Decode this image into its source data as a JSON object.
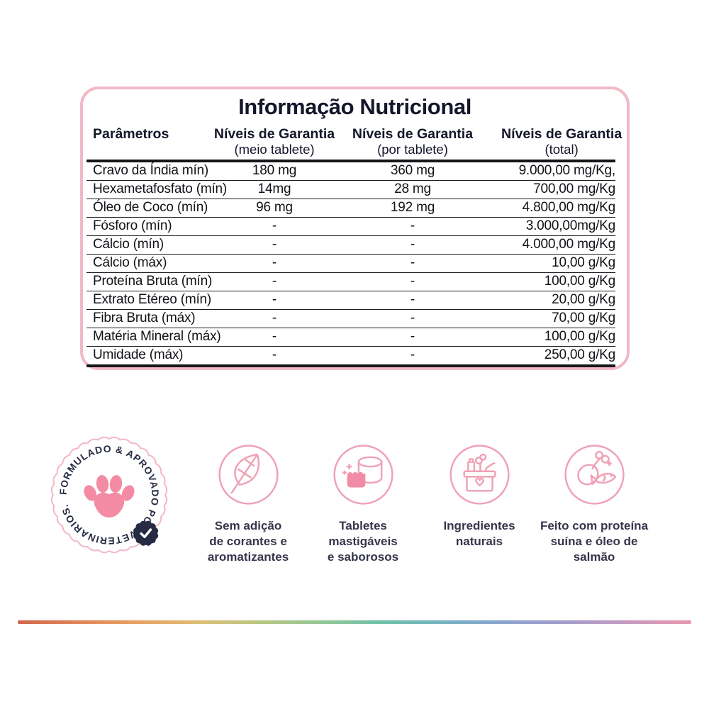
{
  "panel": {
    "title": "Informação Nutricional",
    "table": {
      "columns": [
        {
          "label": "Parâmetros",
          "sublabel": ""
        },
        {
          "label": "Níveis de Garantia",
          "sublabel": "(meio tablete)"
        },
        {
          "label": "Níveis de Garantia",
          "sublabel": "(por tablete)"
        },
        {
          "label": "Níveis de Garantia",
          "sublabel": "(total)"
        }
      ],
      "rows": [
        [
          "Cravo da Índia mín)",
          "180 mg",
          "360 mg",
          "9.000,00 mg/Kg,"
        ],
        [
          "Hexametafosfato (mín)",
          "14mg",
          "28 mg",
          "700,00 mg/Kg"
        ],
        [
          "Óleo de Coco (mín)",
          "96 mg",
          "192 mg",
          "4.800,00 mg/Kg"
        ],
        [
          "Fósforo (mín)",
          "-",
          "-",
          "3.000,00mg/Kg"
        ],
        [
          "Cálcio (mín)",
          "-",
          "-",
          "4.000,00 mg/Kg"
        ],
        [
          "Cálcio (máx)",
          "-",
          "-",
          "10,00 g/Kg"
        ],
        [
          "Proteína Bruta (mín)",
          "-",
          "-",
          "100,00 g/Kg"
        ],
        [
          "Extrato Etéreo (mín)",
          "-",
          "-",
          "20,00 g/Kg"
        ],
        [
          "Fibra Bruta (máx)",
          "-",
          "-",
          "70,00 g/Kg"
        ],
        [
          "Matéria Mineral (máx)",
          "-",
          "-",
          "100,00 g/Kg"
        ],
        [
          "Umidade (máx)",
          "-",
          "-",
          "250,00 g/Kg"
        ]
      ]
    }
  },
  "stamp": {
    "text": "FORMULADO & APROVADO POR VETERINARIOS.",
    "icon": "paw-icon",
    "badge_icon": "check-seal-icon"
  },
  "features": [
    {
      "icon": "leaf-no-additives-icon",
      "caption": "Sem adição\nde corantes e\naromatizantes"
    },
    {
      "icon": "chewable-tablets-icon",
      "caption": "Tabletes\nmastigáveis\ne saborosos"
    },
    {
      "icon": "natural-ingredients-box-icon",
      "caption": "Ingredientes\nnaturais"
    },
    {
      "icon": "drumstick-fish-icon",
      "caption": "Feito com proteína\nsuína e óleo de\nsalmão"
    }
  ],
  "colors": {
    "panel_border_pink": "#f3b8c6",
    "icon_pink": "#efa2b7",
    "icon_fill_pink": "#f28ba6",
    "text_navy": "#14162a",
    "table_text": "#121218",
    "badge_navy": "#262b44",
    "rainbow": [
      "#d2664d",
      "#e89f62",
      "#bcc581",
      "#6fc0a8",
      "#8aa5cd",
      "#e897ae"
    ]
  }
}
